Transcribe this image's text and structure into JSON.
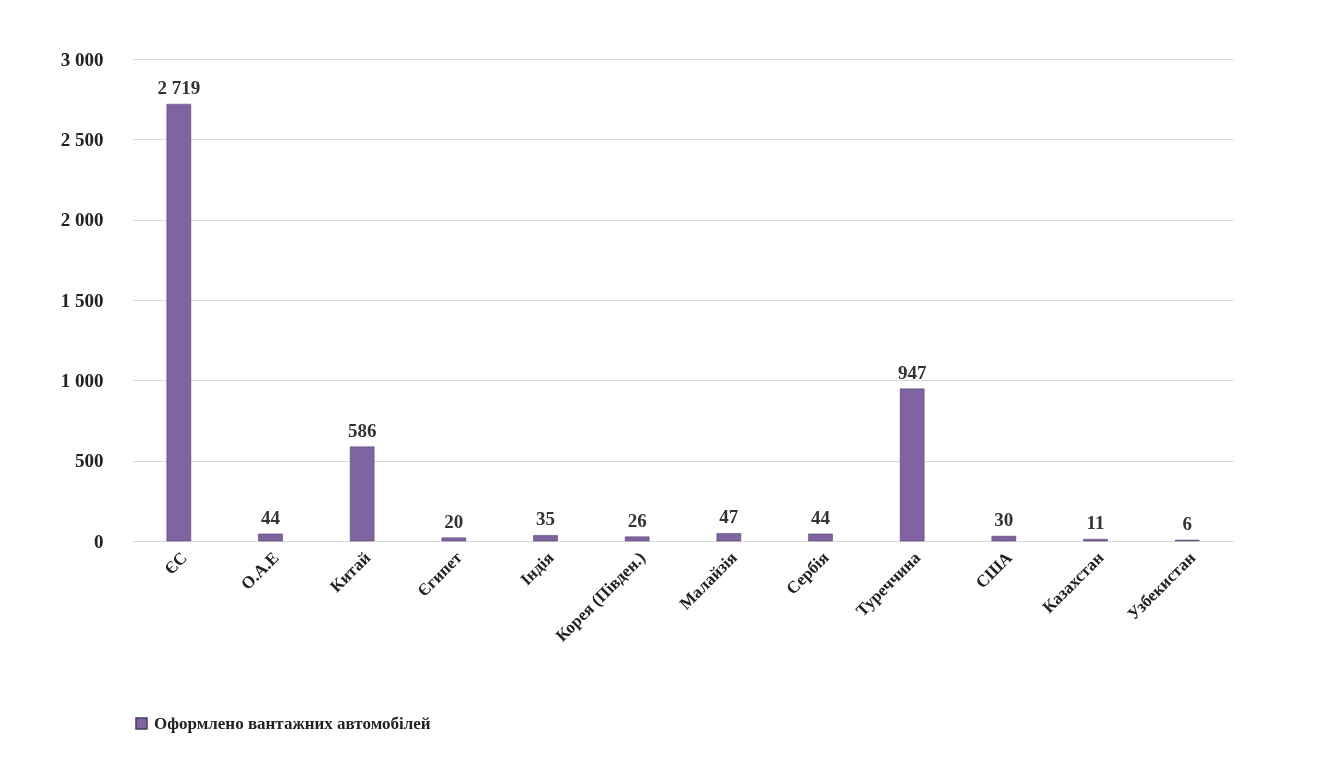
{
  "chart_data": {
    "type": "bar",
    "categories": [
      "ЄС",
      "О.А.Е",
      "Китай",
      "Єгипет",
      "Індія",
      "Корея (Півден.)",
      "Малайзія",
      "Сербія",
      "Туреччина",
      "США",
      "Казахстан",
      "Узбекистан"
    ],
    "series": [
      {
        "name": "Оформлено вантажних автомобілей",
        "color": "#8064a2",
        "values": [
          2719,
          44,
          586,
          20,
          35,
          26,
          47,
          44,
          947,
          30,
          11,
          6
        ],
        "value_labels": [
          "2 719",
          "44",
          "586",
          "20",
          "35",
          "26",
          "47",
          "44",
          "947",
          "30",
          "11",
          "6"
        ]
      }
    ],
    "ylim": [
      0,
      3000
    ],
    "yticks": [
      0,
      500,
      {
        "value": 1000,
        "label": "1 000"
      },
      {
        "value": 1500,
        "label": "1 500"
      },
      {
        "value": 2000,
        "label": "2 000"
      },
      {
        "value": 2500,
        "label": "2 500"
      },
      {
        "value": 3000,
        "label": "3 000"
      }
    ],
    "grid": "y",
    "legend": "bottom"
  }
}
